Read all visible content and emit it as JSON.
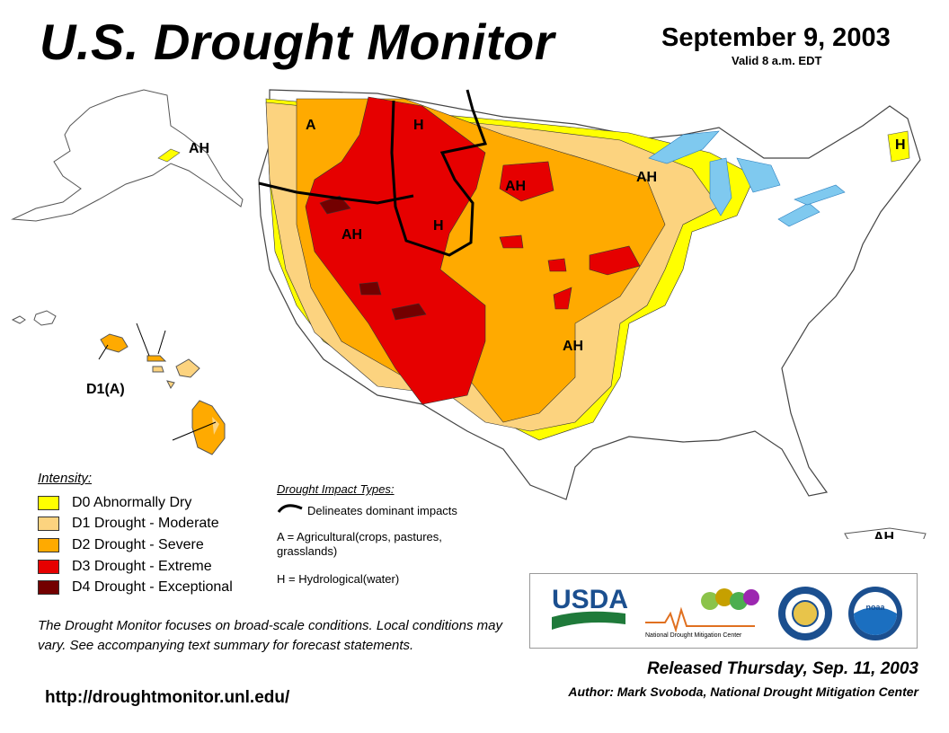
{
  "header": {
    "title": "U.S. Drought Monitor",
    "date": "September 9, 2003",
    "valid": "Valid 8 a.m. EDT"
  },
  "legend": {
    "title": "Intensity:",
    "items": [
      {
        "label": "D0 Abnormally Dry",
        "color": "#ffff00"
      },
      {
        "label": "D1 Drought - Moderate",
        "color": "#fcd37f"
      },
      {
        "label": "D2 Drought - Severe",
        "color": "#ffaa00"
      },
      {
        "label": "D3 Drought - Extreme",
        "color": "#e60000"
      },
      {
        "label": "D4 Drought - Exceptional",
        "color": "#730000"
      }
    ]
  },
  "impacts": {
    "title": "Drought Impact Types:",
    "line_label": "Delineates dominant impacts",
    "agricultural_1": "A = Agricultural(crops, pastures,",
    "agricultural_2": "grasslands)",
    "hydrological": "H = Hydrological(water)"
  },
  "map_labels": {
    "wa": "A",
    "mt_h": "H",
    "ah_ak": "AH",
    "ah_sd": "AH",
    "ah_mn": "AH",
    "wy_h": "H",
    "ah_nv": "AH",
    "ah_ok": "AH",
    "d1a_hi": "D1(A)",
    "h_me": "H",
    "ah_pr": "AH"
  },
  "footer": {
    "note": "The Drought Monitor focuses on broad-scale conditions. Local conditions may vary. See accompanying text summary for forecast statements.",
    "url": "http://droughtmonitor.unl.edu/",
    "released": "Released Thursday, Sep. 11, 2003",
    "author": "Author: Mark Svoboda, National Drought Mitigation Center"
  },
  "logos": {
    "usda": "USDA",
    "ndmc": "National Drought Mitigation Center",
    "noaa": "noaa"
  }
}
